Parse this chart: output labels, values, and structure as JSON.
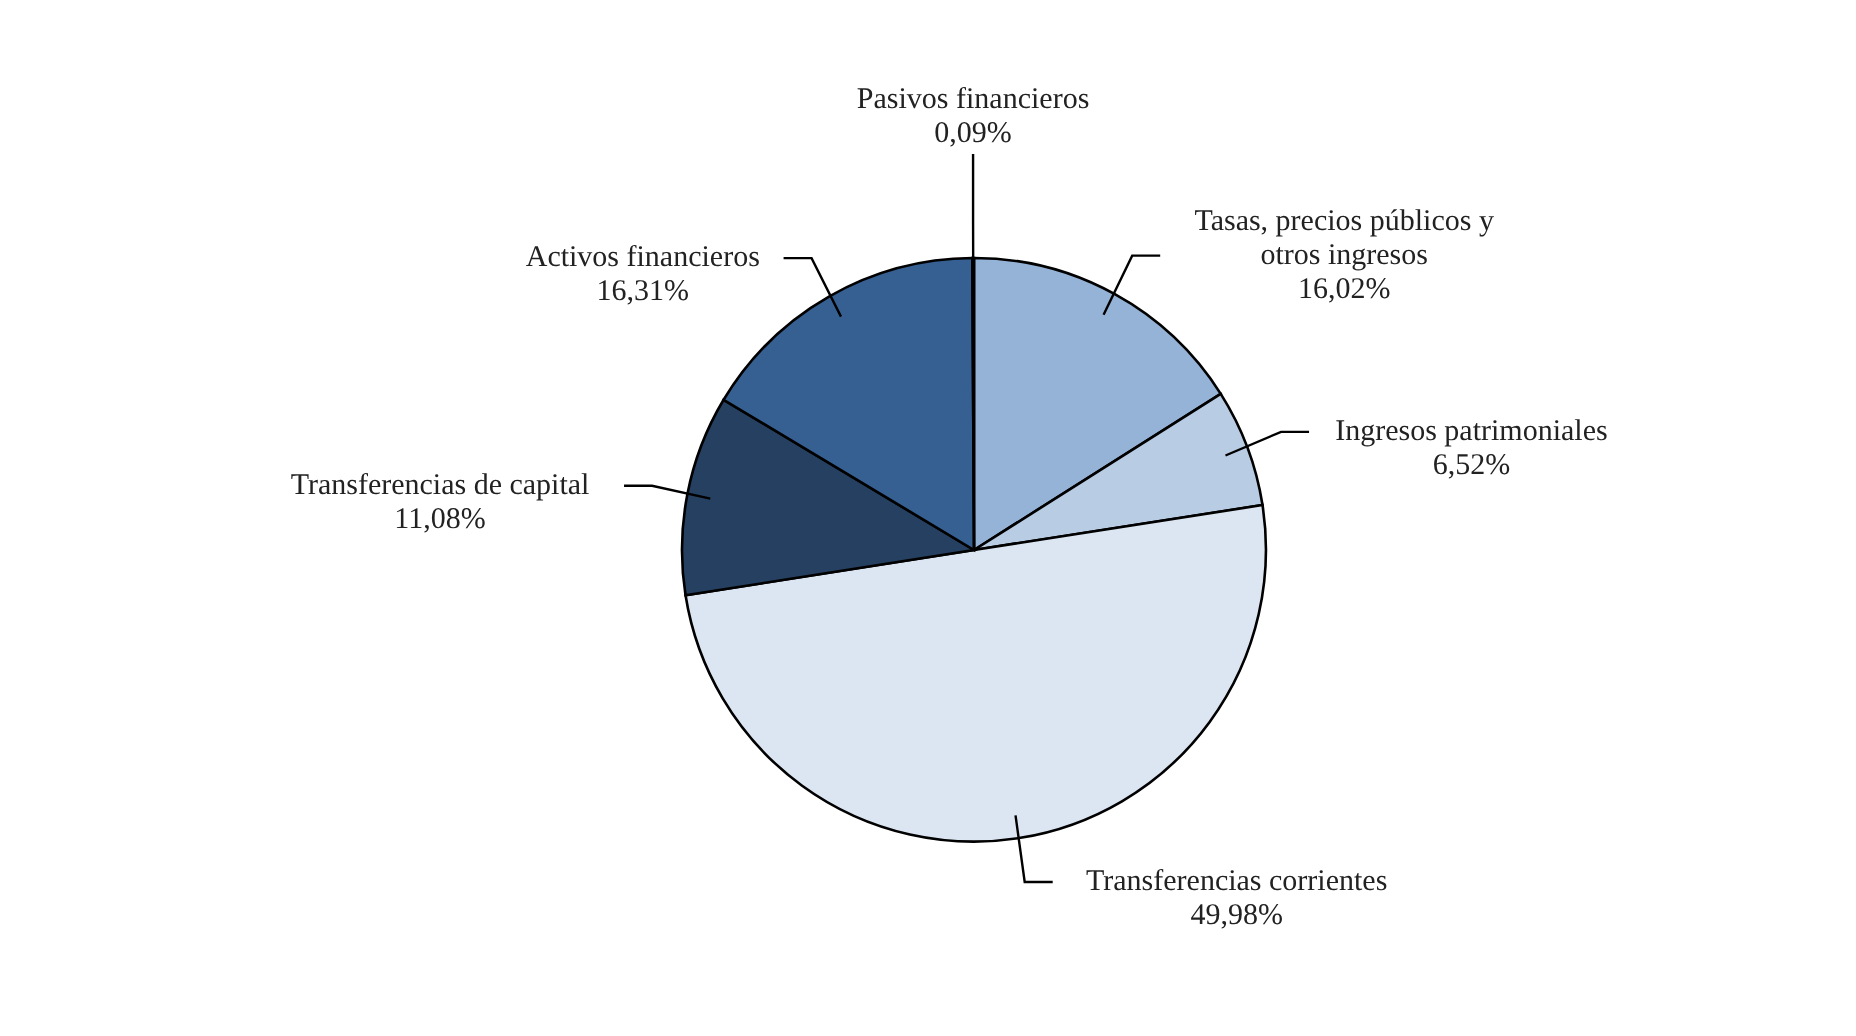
{
  "chart_data": {
    "type": "pie",
    "categories": [
      "Tasas, precios públicos y otros ingresos",
      "Ingresos patrimoniales",
      "Transferencias corrientes",
      "Transferencias de capital",
      "Activos financieros",
      "Pasivos financieros"
    ],
    "values": [
      16.02,
      6.52,
      49.98,
      11.08,
      16.31,
      0.09
    ],
    "colors": [
      "#95b3d7",
      "#b8cce4",
      "#dce6f2",
      "#254061",
      "#366092",
      "#4f81bd"
    ],
    "value_labels": [
      "16,02%",
      "6,52%",
      "49,98%",
      "11,08%",
      "16,31%",
      "0,09%"
    ],
    "legend": false
  }
}
